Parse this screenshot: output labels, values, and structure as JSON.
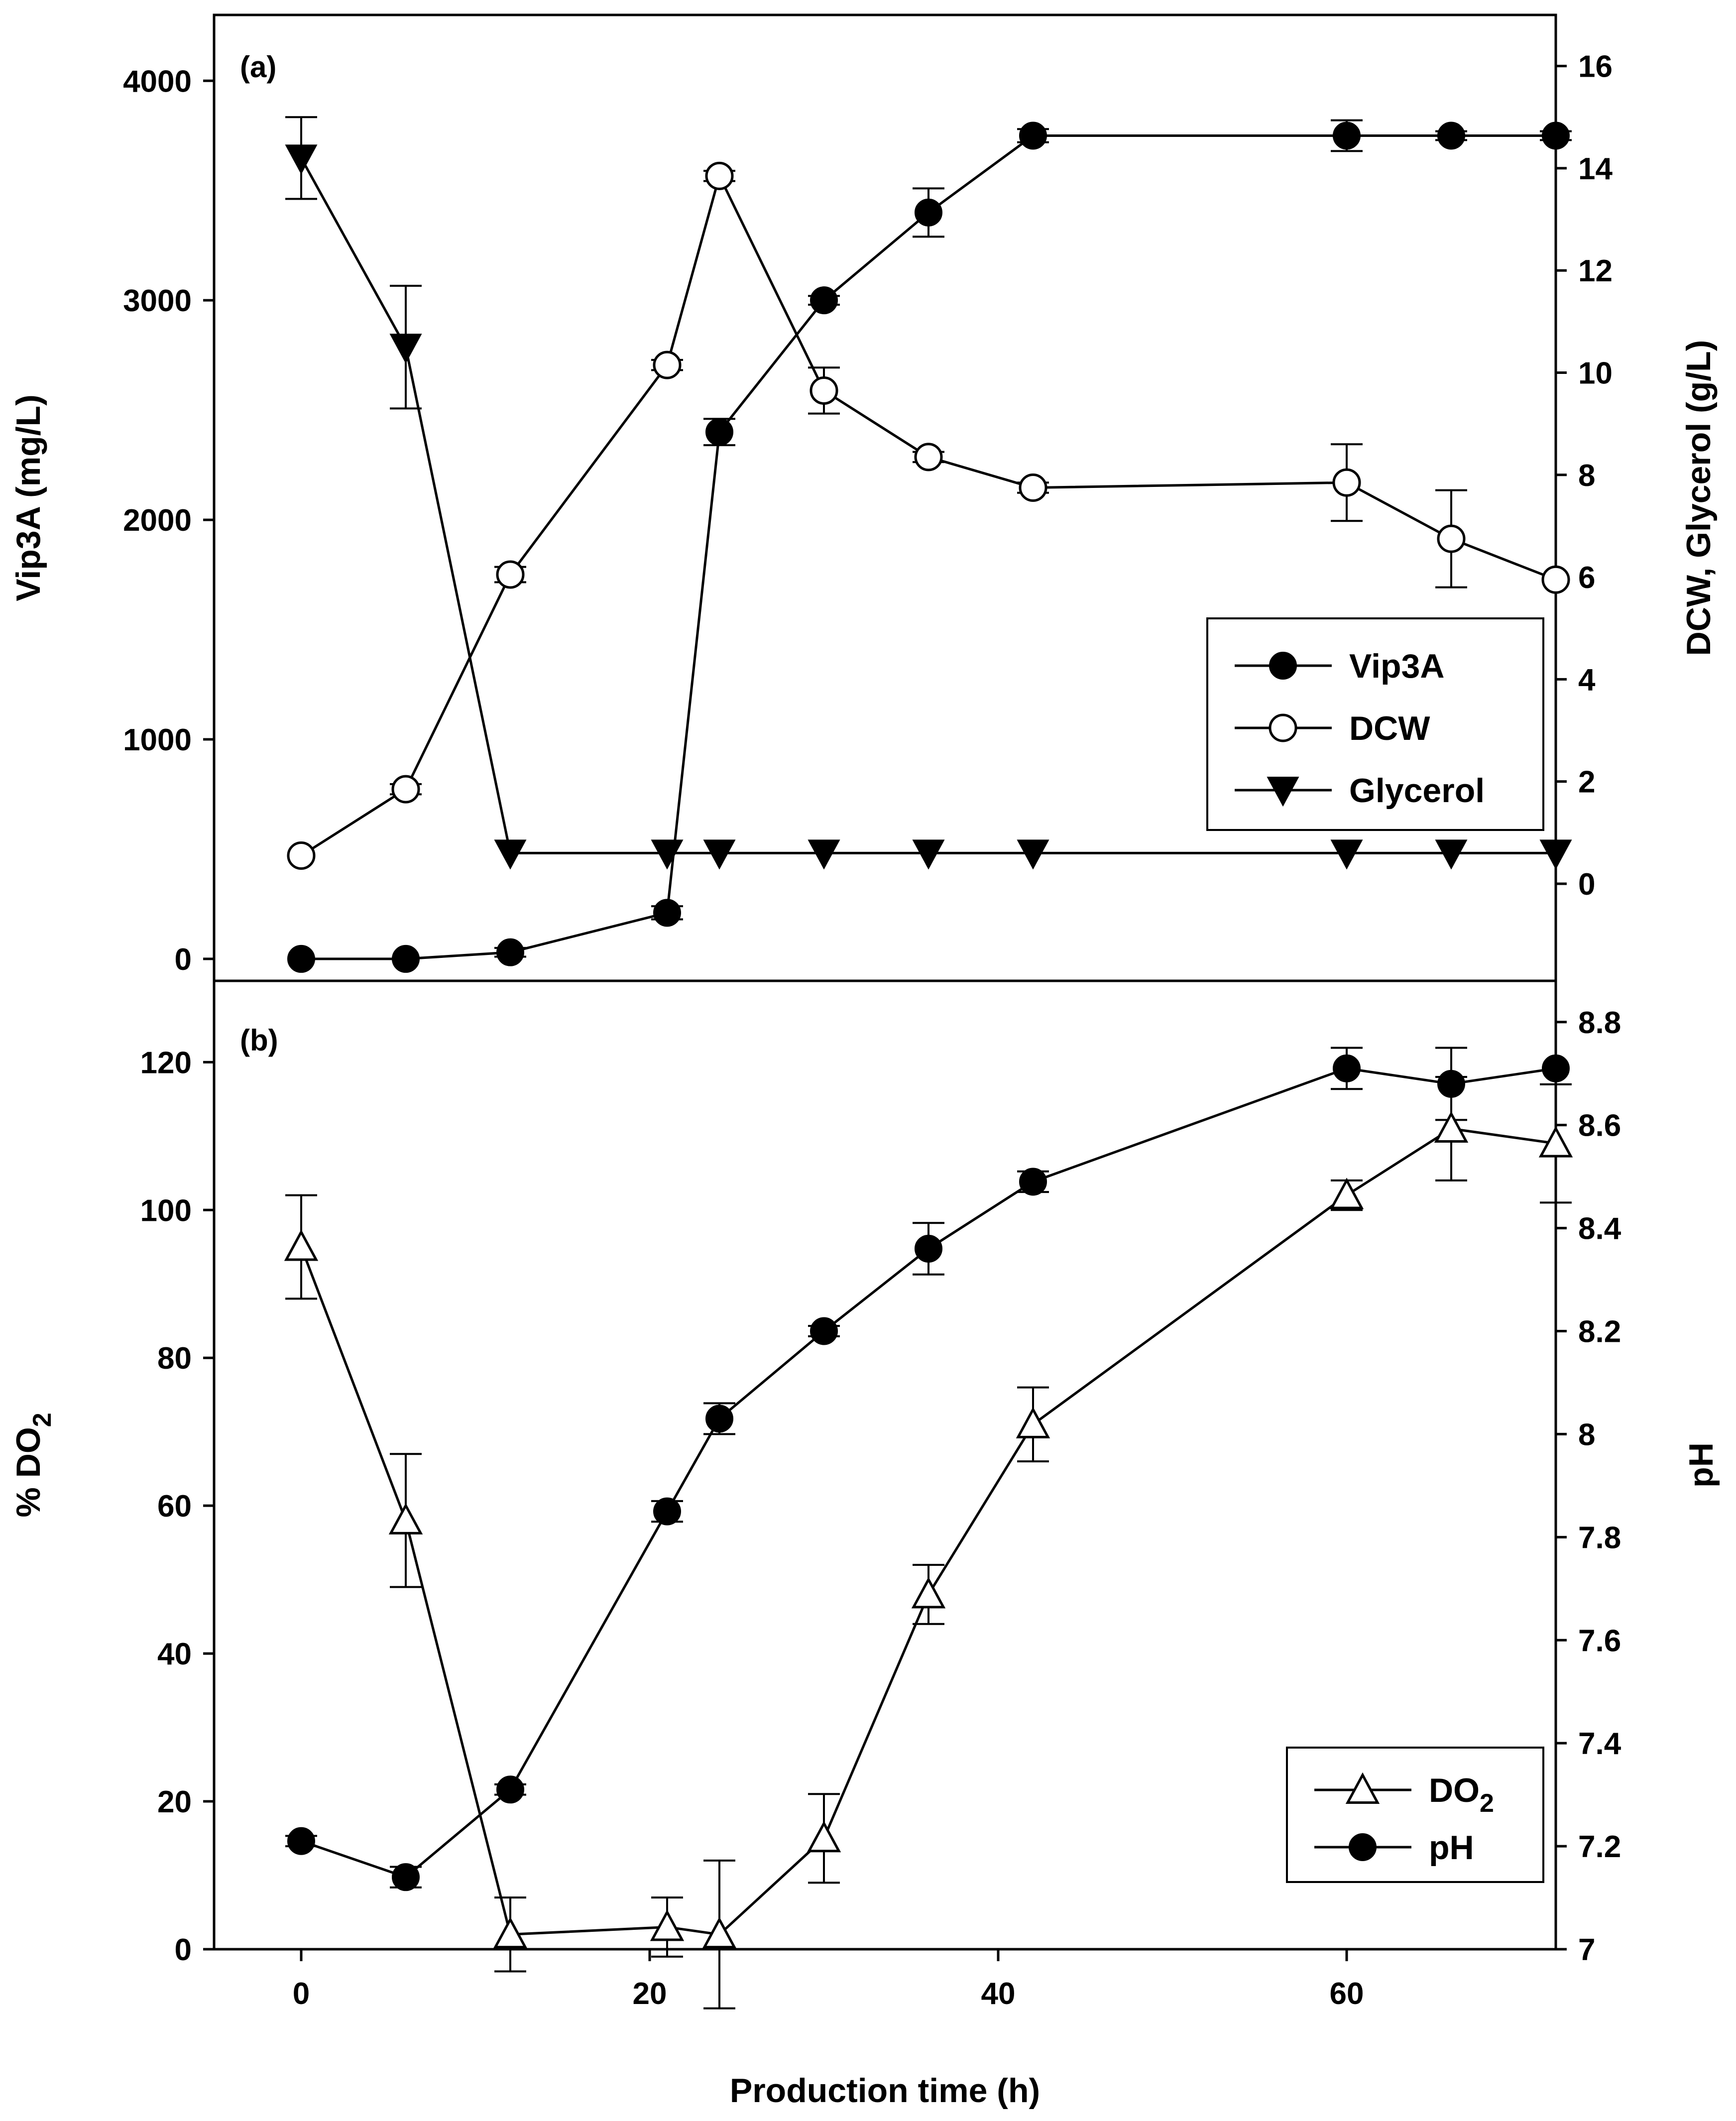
{
  "chart_data": {
    "type": "line",
    "xlabel": "Production time (h)",
    "xlim": [
      -5,
      72
    ],
    "x_ticks": [
      0,
      20,
      40,
      60
    ],
    "panels": [
      {
        "label": "(a)",
        "ylabel_left": "Vip3A (mg/L)",
        "ylabel_right": "DCW, Glycerol (g/L)",
        "ylim_left": [
          -100,
          4300
        ],
        "ylim_right": [
          -1.9,
          17
        ],
        "yticks_left": [
          0,
          1000,
          2000,
          3000,
          4000
        ],
        "yticks_right": [
          0,
          2,
          4,
          6,
          8,
          10,
          12,
          14,
          16
        ],
        "legend_position": "right-middle",
        "series": [
          {
            "name": "Vip3A",
            "axis": "left",
            "marker": "circle-filled",
            "x": [
              0,
              6,
              12,
              21,
              24,
              30,
              36,
              42,
              60,
              66,
              72
            ],
            "y": [
              0,
              0,
              30,
              210,
              2400,
              3000,
              3400,
              3750,
              3750,
              3750,
              3750
            ],
            "err": [
              0,
              0,
              20,
              30,
              60,
              20,
              110,
              30,
              70,
              20,
              20
            ]
          },
          {
            "name": "DCW",
            "axis": "right",
            "marker": "circle-open",
            "x": [
              0,
              6,
              12,
              21,
              24,
              30,
              36,
              42,
              60,
              66,
              72
            ],
            "y": [
              0.55,
              1.85,
              6.05,
              10.15,
              13.85,
              9.65,
              8.35,
              7.75,
              7.85,
              6.75,
              5.95
            ],
            "err": [
              0,
              0.1,
              0.15,
              0.1,
              0.1,
              0.45,
              0.1,
              0.1,
              0.75,
              0.95,
              0
            ]
          },
          {
            "name": "Glycerol",
            "axis": "right",
            "marker": "triangle-down-filled",
            "x": [
              0,
              6,
              12,
              21,
              24,
              30,
              36,
              42,
              60,
              66,
              72
            ],
            "y": [
              14.2,
              10.5,
              0.6,
              0.6,
              0.6,
              0.6,
              0.6,
              0.6,
              0.6,
              0.6,
              0.6
            ],
            "err": [
              0.8,
              1.2,
              0,
              0,
              0,
              0,
              0,
              0,
              0,
              0,
              0
            ]
          }
        ]
      },
      {
        "label": "(b)",
        "ylabel_left": "% DO2",
        "ylabel_right": "pH",
        "ylim_left": [
          0,
          131
        ],
        "ylim_right": [
          7.0,
          8.88
        ],
        "yticks_left": [
          0,
          20,
          40,
          60,
          80,
          100,
          120
        ],
        "yticks_right": [
          7.0,
          7.2,
          7.4,
          7.6,
          7.8,
          8.0,
          8.2,
          8.4,
          8.6,
          8.8
        ],
        "legend_position": "bottom-right",
        "series": [
          {
            "name": "DO2",
            "axis": "left",
            "marker": "triangle-up-open",
            "x": [
              0,
              6,
              12,
              21,
              24,
              30,
              36,
              42,
              60,
              66,
              72
            ],
            "y": [
              95,
              58,
              2,
              3,
              2,
              15,
              48,
              71,
              102,
              111,
              109
            ],
            "err": [
              7,
              9,
              5,
              4,
              10,
              6,
              4,
              5,
              2,
              7,
              8
            ]
          },
          {
            "name": "pH",
            "axis": "right",
            "marker": "circle-filled",
            "x": [
              0,
              6,
              12,
              21,
              24,
              30,
              36,
              42,
              60,
              66,
              72
            ],
            "y": [
              7.21,
              7.14,
              7.31,
              7.85,
              8.03,
              8.2,
              8.36,
              8.49,
              8.71,
              8.68,
              8.71
            ],
            "err": [
              0.01,
              0.02,
              0.01,
              0.02,
              0.03,
              0.01,
              0.05,
              0.02,
              0.04,
              0.07,
              0
            ]
          }
        ]
      }
    ]
  }
}
